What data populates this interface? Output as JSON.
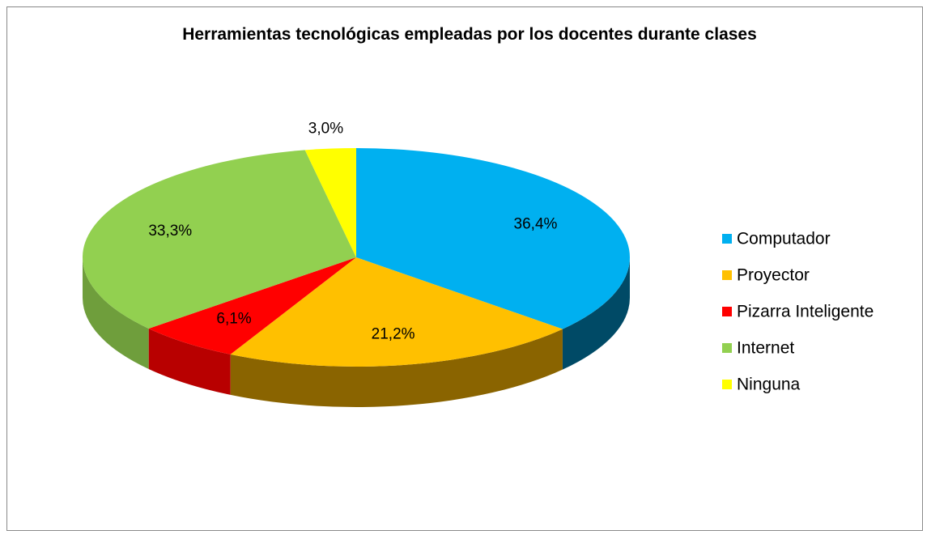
{
  "chart_data": {
    "type": "pie3d",
    "title": "Herramientas tecnológicas empleadas por los docentes durante clases",
    "categories": [
      "Computador",
      "Proyector",
      "Pizarra Inteligente",
      "Internet",
      "Ninguna"
    ],
    "values": [
      36.4,
      21.2,
      6.1,
      33.3,
      3.0
    ],
    "value_labels": [
      "36,4%",
      "21,2%",
      "6,1%",
      "33,3%",
      "3,0%"
    ],
    "colors": [
      "#00b0f0",
      "#ffc000",
      "#ff0000",
      "#92d050",
      "#ffff00"
    ],
    "side_colors": [
      "#004a66",
      "#8a6400",
      "#b80000",
      "#6f9e3c",
      "#b5b500"
    ],
    "legend": "right"
  }
}
